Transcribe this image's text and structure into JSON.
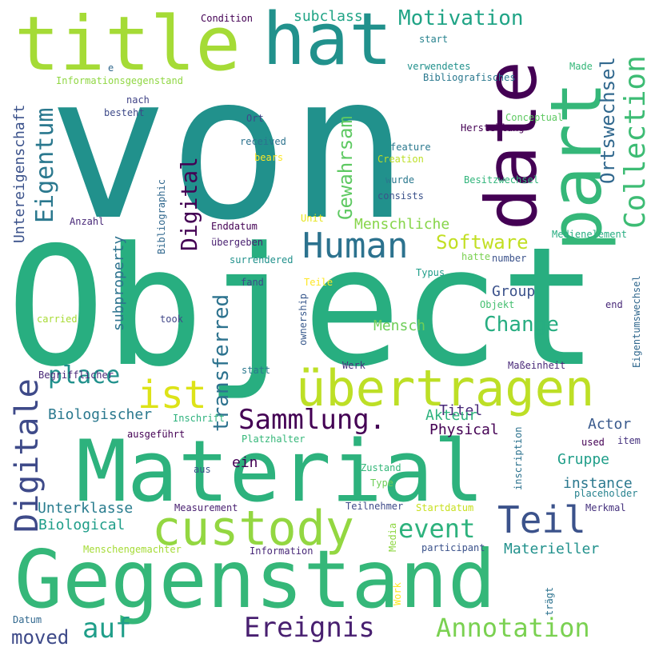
{
  "words": [
    {
      "text": "von",
      "color": "#21918c"
    },
    {
      "text": "Object",
      "color": "#28ae80"
    },
    {
      "text": "Gegenstand",
      "color": "#35b779"
    },
    {
      "text": "Material",
      "color": "#2db27d"
    },
    {
      "text": "title",
      "color": "#a5db36"
    },
    {
      "text": "hat",
      "color": "#21918c"
    },
    {
      "text": "date",
      "color": "#440154"
    },
    {
      "text": "part",
      "color": "#35b779"
    },
    {
      "text": "übertragen",
      "color": "#bddf26"
    },
    {
      "text": "custody",
      "color": "#93d741"
    },
    {
      "text": "Collection",
      "color": "#3dbc74"
    },
    {
      "text": "Human",
      "color": "#2c728e"
    },
    {
      "text": "Teil",
      "color": "#3b528b"
    },
    {
      "text": "ist",
      "color": "#dde318"
    },
    {
      "text": "Digitale",
      "color": "#3e4a89"
    },
    {
      "text": "Sammlung.",
      "color": "#440154"
    },
    {
      "text": "Ortswechsel",
      "color": "#31688e"
    },
    {
      "text": "Eigentum",
      "color": "#2a788e"
    },
    {
      "text": "Digital",
      "color": "#440154"
    },
    {
      "text": "Annotation",
      "color": "#7ad151"
    },
    {
      "text": "Ereignis",
      "color": "#481f70"
    },
    {
      "text": "event",
      "color": "#2db27d"
    },
    {
      "text": "place",
      "color": "#21918c"
    },
    {
      "text": "Motivation",
      "color": "#20a486"
    },
    {
      "text": "Gewahrsam",
      "color": "#5ec962"
    },
    {
      "text": "transferred",
      "color": "#2c728e"
    },
    {
      "text": "auf",
      "color": "#1f9e89"
    },
    {
      "text": "moved",
      "color": "#3e4a89"
    },
    {
      "text": "Software",
      "color": "#c2df23"
    },
    {
      "text": "Change",
      "color": "#27ad81"
    },
    {
      "text": "Menschliche",
      "color": "#86d549"
    },
    {
      "text": "subclass",
      "color": "#20a486"
    },
    {
      "text": "Untereigenschaft",
      "color": "#3b528b"
    },
    {
      "text": "subproperty",
      "color": "#2c728e"
    },
    {
      "text": "Biologischer",
      "color": "#2a788e"
    },
    {
      "text": "Unterklasse",
      "color": "#287c8e"
    },
    {
      "text": "Biological",
      "color": "#1f9e89"
    },
    {
      "text": "Mensch",
      "color": "#6ece58"
    },
    {
      "text": "Group",
      "color": "#3b528b"
    },
    {
      "text": "Titel",
      "color": "#482878"
    },
    {
      "text": "Akteur",
      "color": "#2db27d"
    },
    {
      "text": "Physical",
      "color": "#440154"
    },
    {
      "text": "Actor",
      "color": "#38598c"
    },
    {
      "text": "ein",
      "color": "#440154"
    },
    {
      "text": "Gruppe",
      "color": "#1f9e89"
    },
    {
      "text": "instance",
      "color": "#2a788e"
    },
    {
      "text": "Materieller",
      "color": "#21918c"
    },
    {
      "text": "Condition",
      "color": "#440154"
    },
    {
      "text": "start",
      "color": "#26828e"
    },
    {
      "text": "verwendetes",
      "color": "#21918c"
    },
    {
      "text": "Bibliografisches",
      "color": "#2a788e"
    },
    {
      "text": "Made",
      "color": "#35b779"
    },
    {
      "text": "Informationsgegenstand",
      "color": "#90d743"
    },
    {
      "text": "e",
      "color": "#31688e"
    },
    {
      "text": "nach",
      "color": "#414487"
    },
    {
      "text": "besteht",
      "color": "#3e4a89"
    },
    {
      "text": "Ort",
      "color": "#404688"
    },
    {
      "text": "Conceptual",
      "color": "#5ec962"
    },
    {
      "text": "Herstellung",
      "color": "#440154"
    },
    {
      "text": "received",
      "color": "#2c728e"
    },
    {
      "text": "bears",
      "color": "#fde725"
    },
    {
      "text": "feature",
      "color": "#2a788e"
    },
    {
      "text": "Creation",
      "color": "#bddf26"
    },
    {
      "text": "wurde",
      "color": "#2a788e"
    },
    {
      "text": "Besitzwechsel",
      "color": "#31b57b"
    },
    {
      "text": "consists",
      "color": "#3b528b"
    },
    {
      "text": "Bibliographic",
      "color": "#31688e"
    },
    {
      "text": "Anzahl",
      "color": "#482878"
    },
    {
      "text": "Unit",
      "color": "#e5e419"
    },
    {
      "text": "Enddatum",
      "color": "#440154"
    },
    {
      "text": "übergeben",
      "color": "#481f70"
    },
    {
      "text": "Medienelement",
      "color": "#27ad81"
    },
    {
      "text": "surrendered",
      "color": "#21918c"
    },
    {
      "text": "hatte",
      "color": "#7ad151"
    },
    {
      "text": "number",
      "color": "#3b528b"
    },
    {
      "text": "fand",
      "color": "#3e4a89"
    },
    {
      "text": "Teile",
      "color": "#fde725"
    },
    {
      "text": "Typus",
      "color": "#1f9e89"
    },
    {
      "text": "Objekt",
      "color": "#44bf70"
    },
    {
      "text": "end",
      "color": "#482878"
    },
    {
      "text": "Eigentumswechsel",
      "color": "#31688e"
    },
    {
      "text": "carried",
      "color": "#a8db34"
    },
    {
      "text": "took",
      "color": "#404688"
    },
    {
      "text": "ownership",
      "color": "#38598c"
    },
    {
      "text": "statt",
      "color": "#2a788e"
    },
    {
      "text": "Werk",
      "color": "#46327e"
    },
    {
      "text": "Maßeinheit",
      "color": "#482878"
    },
    {
      "text": "Begrifflicher",
      "color": "#482878"
    },
    {
      "text": "Inschrift",
      "color": "#2db27d"
    },
    {
      "text": "ausgeführt",
      "color": "#440154"
    },
    {
      "text": "Platzhalter",
      "color": "#35b779"
    },
    {
      "text": "used",
      "color": "#440154"
    },
    {
      "text": "item",
      "color": "#46327e"
    },
    {
      "text": "inscription",
      "color": "#2c728e"
    },
    {
      "text": "aus",
      "color": "#3b528b"
    },
    {
      "text": "Zustand",
      "color": "#35b779"
    },
    {
      "text": "Type",
      "color": "#6ece58"
    },
    {
      "text": "placeholder",
      "color": "#26828e"
    },
    {
      "text": "Measurement",
      "color": "#481f70"
    },
    {
      "text": "Teilnehmer",
      "color": "#3e4a89"
    },
    {
      "text": "Startdatum",
      "color": "#c8e020"
    },
    {
      "text": "Merkmal",
      "color": "#46327e"
    },
    {
      "text": "Menschengemachter",
      "color": "#a5db36"
    },
    {
      "text": "Information",
      "color": "#482878"
    },
    {
      "text": "Media",
      "color": "#8fd744"
    },
    {
      "text": "participant",
      "color": "#3b528b"
    },
    {
      "text": "Work",
      "color": "#fde725"
    },
    {
      "text": "trägt",
      "color": "#2c728e"
    },
    {
      "text": "Datum",
      "color": "#31688e"
    }
  ]
}
